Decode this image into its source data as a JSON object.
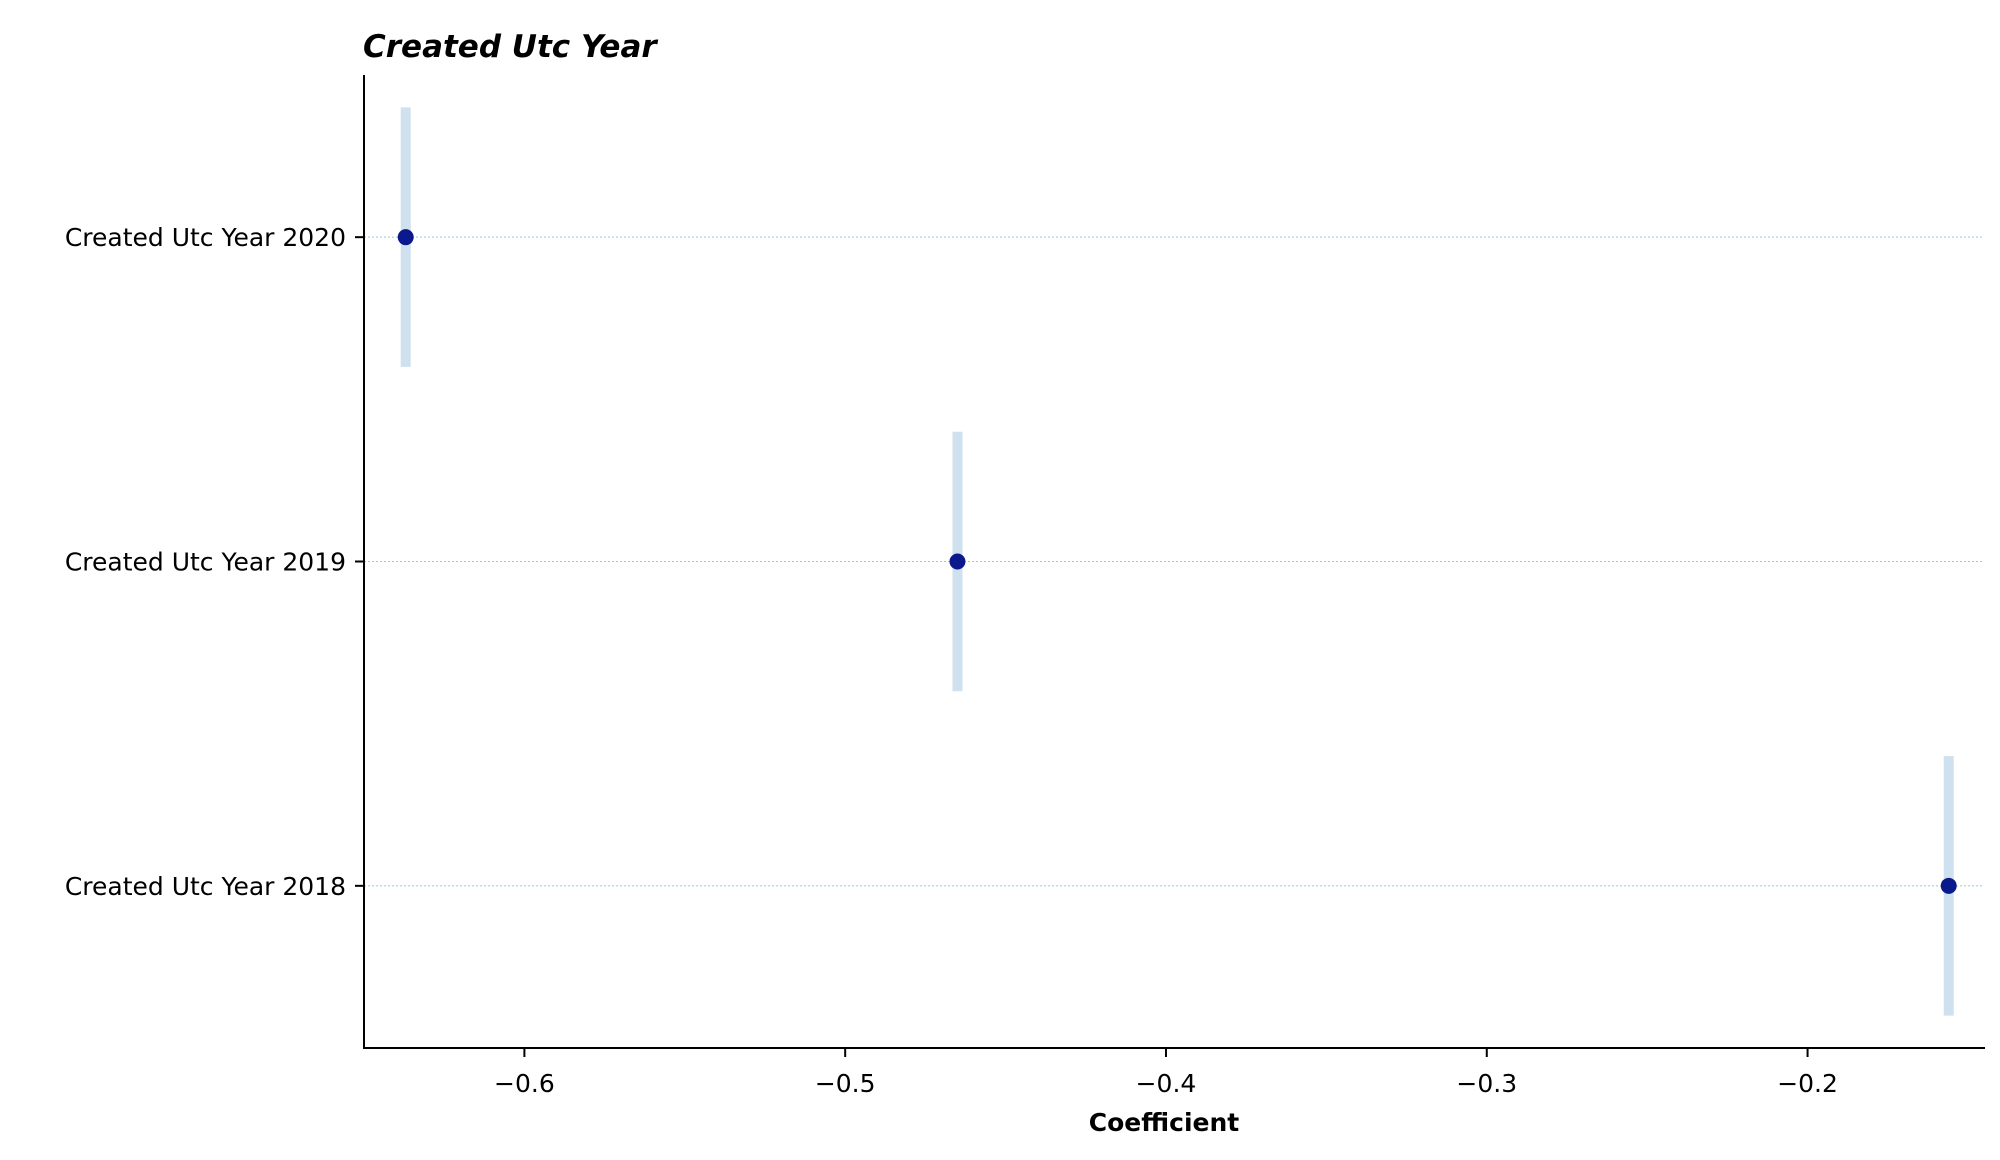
{
  "chart_data": {
    "type": "scatter",
    "title": "Created Utc Year",
    "xlabel": "Coefficient",
    "ylabel": "",
    "xlim": [
      -0.65,
      -0.145
    ],
    "x_ticks": [
      -0.6,
      -0.5,
      -0.4,
      -0.3,
      -0.2
    ],
    "x_tick_labels": [
      "−0.6",
      "−0.5",
      "−0.4",
      "−0.3",
      "−0.2"
    ],
    "categories": [
      "Created Utc Year 2020",
      "Created Utc Year 2019",
      "Created Utc Year 2018"
    ],
    "values": [
      -0.637,
      -0.465,
      -0.156
    ],
    "ci_band_half_height": 0.4,
    "grid": "horizontal dotted",
    "colors": {
      "point": "#0a1a8c",
      "ci": "#cfe0ee",
      "grid": "#9fc3d8",
      "axis": "#000000"
    }
  }
}
